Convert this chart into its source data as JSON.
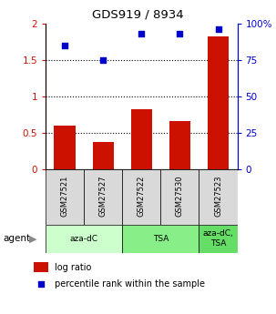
{
  "title": "GDS919 / 8934",
  "samples": [
    "GSM27521",
    "GSM27527",
    "GSM27522",
    "GSM27530",
    "GSM27523"
  ],
  "log_ratio": [
    0.6,
    0.38,
    0.83,
    0.67,
    1.82
  ],
  "percentile_rank": [
    85,
    75,
    93,
    93,
    96
  ],
  "bar_color": "#cc1100",
  "dot_color": "#0000cc",
  "ylim_left": [
    0,
    2
  ],
  "ylim_right": [
    0,
    100
  ],
  "yticks_left": [
    0,
    0.5,
    1.0,
    1.5,
    2.0
  ],
  "ytick_labels_left": [
    "0",
    "0.5",
    "1",
    "1.5",
    "2"
  ],
  "yticks_right": [
    0,
    25,
    50,
    75,
    100
  ],
  "ytick_labels_right": [
    "0",
    "25",
    "50",
    "75",
    "100%"
  ],
  "dotted_lines": [
    0.5,
    1.0,
    1.5
  ],
  "groups": [
    {
      "label": "aza-dC",
      "start": 0,
      "end": 2,
      "color": "#ccffcc"
    },
    {
      "label": "TSA",
      "start": 2,
      "end": 4,
      "color": "#88ee88"
    },
    {
      "label": "aza-dC,\nTSA",
      "start": 4,
      "end": 5,
      "color": "#66dd66"
    }
  ],
  "legend_bar_label": "log ratio",
  "legend_dot_label": "percentile rank within the sample",
  "agent_label": "agent",
  "sample_bg": "#d9d9d9",
  "plot_bg": "#ffffff"
}
